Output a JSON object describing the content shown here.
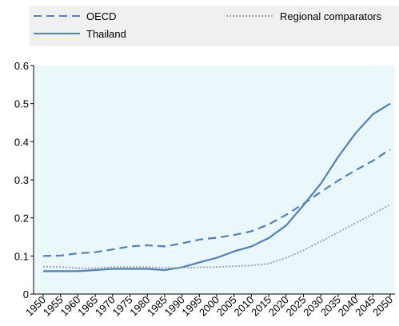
{
  "chart_data": {
    "type": "line",
    "title": "",
    "xlabel": "",
    "ylabel": "",
    "x": [
      1950,
      1955,
      1960,
      1965,
      1970,
      1975,
      1980,
      1985,
      1990,
      1995,
      2000,
      2005,
      2010,
      2015,
      2020,
      2025,
      2030,
      2035,
      2040,
      2045,
      2050
    ],
    "ylim": [
      0,
      0.6
    ],
    "yticks": [
      "0",
      "0.1",
      "0.2",
      "0.3",
      "0.4",
      "0.5",
      "0.6"
    ],
    "grid": false,
    "legend_position": "top",
    "colors": {
      "primary": "#4f81bd",
      "comparator": "#a6a6a6",
      "plot_bg": "#eaf7fb",
      "legend_bg": "#f0f0f0"
    },
    "series": [
      {
        "name": "OECD",
        "style": "dashed",
        "values": [
          0.1,
          0.101,
          0.107,
          0.11,
          0.117,
          0.125,
          0.128,
          0.125,
          0.133,
          0.143,
          0.148,
          0.155,
          0.165,
          0.183,
          0.208,
          0.237,
          0.268,
          0.298,
          0.325,
          0.35,
          0.38
        ]
      },
      {
        "name": "Thailand",
        "style": "solid",
        "values": [
          0.06,
          0.06,
          0.06,
          0.063,
          0.066,
          0.066,
          0.066,
          0.063,
          0.07,
          0.083,
          0.095,
          0.112,
          0.125,
          0.147,
          0.18,
          0.233,
          0.29,
          0.36,
          0.422,
          0.472,
          0.5
        ]
      },
      {
        "name": "Regional comparators",
        "style": "dotted",
        "values": [
          0.072,
          0.071,
          0.068,
          0.068,
          0.071,
          0.071,
          0.071,
          0.069,
          0.069,
          0.07,
          0.071,
          0.073,
          0.075,
          0.08,
          0.095,
          0.115,
          0.138,
          0.162,
          0.186,
          0.21,
          0.235
        ]
      }
    ]
  }
}
